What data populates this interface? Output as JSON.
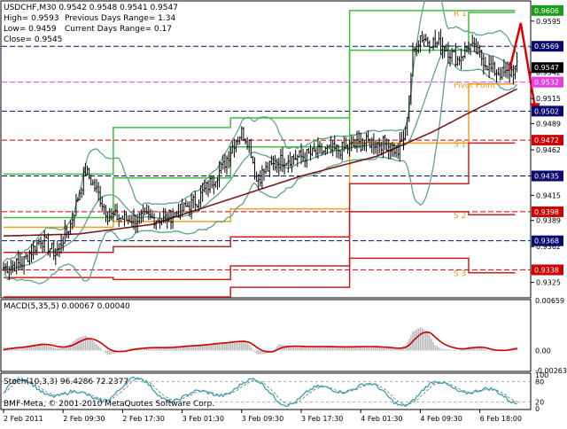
{
  "chart_data": {
    "type": "line",
    "symbol_line": "USDCHF,M30  0.9542 0.9548 0.9541 0.9547",
    "info_lines": [
      {
        "left": "High= 0.9593",
        "right": "Previous Days Range= 1.34"
      },
      {
        "left": "Low= 0.9459",
        "right": "Current Days Range= 0.17"
      },
      {
        "left": "Close= 0.9545",
        "right": ""
      }
    ],
    "price_axis": {
      "ylim": [
        0.931,
        0.9615
      ],
      "ticks": [
        "0.9595",
        "0.9568",
        "0.9542",
        "0.9515",
        "0.9489",
        "0.9462",
        "0.9435",
        "0.9415",
        "0.9389",
        "0.9362",
        "0.9335",
        "0.9325"
      ],
      "tick_values": [
        0.9595,
        0.9568,
        0.9542,
        0.9515,
        0.9489,
        0.9462,
        0.9435,
        0.9415,
        0.9389,
        0.9362,
        0.9335,
        0.9325
      ],
      "tags": [
        {
          "text": "0.9606",
          "value": 0.9606,
          "color": "#1a9e1a"
        },
        {
          "text": "0.9569",
          "value": 0.9569,
          "color": "#0a0a6e"
        },
        {
          "text": "0.9547",
          "value": 0.9547,
          "color": "#000000"
        },
        {
          "text": "0.9532",
          "value": 0.9532,
          "color": "#e040e0"
        },
        {
          "text": "0.9502",
          "value": 0.9502,
          "color": "#0a0a6e"
        },
        {
          "text": "0.9472",
          "value": 0.9472,
          "color": "#cc0000"
        },
        {
          "text": "0.9435",
          "value": 0.9435,
          "color": "#0a0a6e"
        },
        {
          "text": "0.9398",
          "value": 0.9398,
          "color": "#cc0000"
        },
        {
          "text": "0.9368",
          "value": 0.9368,
          "color": "#0a0a6e"
        },
        {
          "text": "0.9338",
          "value": 0.9338,
          "color": "#cc0000"
        }
      ]
    },
    "level_labels": [
      {
        "text": "R 1",
        "value": 0.9604,
        "color": "#d4a020"
      },
      {
        "text": "Pivot Point",
        "value": 0.953,
        "color": "#d4a020"
      },
      {
        "text": "S 1",
        "value": 0.9469,
        "color": "#d4a020"
      },
      {
        "text": "S 2",
        "value": 0.9395,
        "color": "#d4a020"
      },
      {
        "text": "S 3",
        "value": 0.9335,
        "color": "#d4a020"
      }
    ],
    "dashed_levels": [
      {
        "value": 0.9569,
        "color": "#0a0a6e"
      },
      {
        "value": 0.9532,
        "color": "#e040e0"
      },
      {
        "value": 0.9502,
        "color": "#0a0a6e"
      },
      {
        "value": 0.9472,
        "color": "#cc0000"
      },
      {
        "value": 0.9435,
        "color": "#0a0a6e"
      },
      {
        "value": 0.9398,
        "color": "#cc0000"
      },
      {
        "value": 0.9368,
        "color": "#0a0a6e"
      },
      {
        "value": 0.9338,
        "color": "#cc0000"
      }
    ],
    "pivot_steps": {
      "bars": [
        0,
        59,
        122,
        186,
        250,
        275
      ],
      "r2": [
        0.9437,
        0.9485,
        0.9495,
        0.9606,
        0.9606
      ],
      "r1": [
        0.9392,
        0.9433,
        0.9465,
        0.9565,
        0.9604
      ],
      "pp": [
        0.9382,
        0.9388,
        0.9401,
        0.9469,
        0.953
      ],
      "s1": [
        0.9356,
        0.9362,
        0.9372,
        0.9427,
        0.9469
      ],
      "s2": [
        0.933,
        0.9328,
        0.9342,
        0.9398,
        0.9395
      ],
      "s3": [
        0.931,
        0.931,
        0.932,
        0.935,
        0.9335
      ]
    },
    "price_close_keypoints": [
      [
        0,
        0.934
      ],
      [
        10,
        0.9345
      ],
      [
        20,
        0.937
      ],
      [
        28,
        0.9355
      ],
      [
        36,
        0.9385
      ],
      [
        44,
        0.944
      ],
      [
        50,
        0.942
      ],
      [
        56,
        0.9395
      ],
      [
        66,
        0.939
      ],
      [
        76,
        0.9392
      ],
      [
        86,
        0.939
      ],
      [
        96,
        0.94
      ],
      [
        104,
        0.941
      ],
      [
        110,
        0.9425
      ],
      [
        118,
        0.9445
      ],
      [
        124,
        0.947
      ],
      [
        128,
        0.948
      ],
      [
        132,
        0.947
      ],
      [
        136,
        0.943
      ],
      [
        140,
        0.944
      ],
      [
        150,
        0.9452
      ],
      [
        160,
        0.9455
      ],
      [
        170,
        0.946
      ],
      [
        180,
        0.9462
      ],
      [
        186,
        0.9465
      ],
      [
        196,
        0.947
      ],
      [
        206,
        0.9468
      ],
      [
        212,
        0.946
      ],
      [
        216,
        0.948
      ],
      [
        220,
        0.956
      ],
      [
        224,
        0.958
      ],
      [
        228,
        0.9575
      ],
      [
        236,
        0.957
      ],
      [
        244,
        0.9555
      ],
      [
        250,
        0.957
      ],
      [
        256,
        0.956
      ],
      [
        262,
        0.9545
      ],
      [
        270,
        0.954
      ],
      [
        276,
        0.9547
      ]
    ],
    "ma_keypoints": [
      [
        0,
        0.9373
      ],
      [
        40,
        0.9375
      ],
      [
        80,
        0.9385
      ],
      [
        120,
        0.941
      ],
      [
        160,
        0.9435
      ],
      [
        200,
        0.9455
      ],
      [
        230,
        0.948
      ],
      [
        250,
        0.95
      ],
      [
        276,
        0.9525
      ]
    ],
    "forecast_arrow": {
      "from": [
        272,
        0.9545
      ],
      "peak": [
        278,
        0.9593
      ],
      "to": [
        286,
        0.9502
      ],
      "color": "#dd0000"
    },
    "macd": {
      "label": "MACD(5,35,5) 0.00067 0.00040",
      "ticks": [
        "0.00659",
        "0.00",
        "-0.00263"
      ],
      "ylim": [
        -0.00263,
        0.00659
      ]
    },
    "stoch": {
      "label": "Stoch(10,3,3) 96.4286 72.2377",
      "ticks": [
        "100",
        "80",
        "20",
        "0"
      ],
      "ylim": [
        0,
        100
      ]
    },
    "copyright": "BMF-Meta, © 2001-2010 MetaQuotes Software Corp.",
    "x_tick_labels": [
      "2 Feb 2011",
      "2 Feb 09:30",
      "2 Feb 17:30",
      "3 Feb 01:30",
      "3 Feb 09:30",
      "3 Feb 17:30",
      "4 Feb 01:30",
      "4 Feb 09:30",
      "6 Feb 18:00"
    ],
    "x_tick_bars": [
      0,
      32,
      64,
      96,
      128,
      160,
      192,
      224,
      256
    ],
    "colors": {
      "bars": "#000000",
      "bollinger": "#5aa58a",
      "ma": "#7a1a1a",
      "r_lines": "#3cc03c",
      "pp_line": "#f0a020",
      "s_lines": "#cc2020",
      "macd_hist": "#b4b4b4",
      "macd_signal": "#cc0000",
      "stoch_main": "#3aa0b0",
      "stoch_signal": "#8a8a8a"
    }
  }
}
